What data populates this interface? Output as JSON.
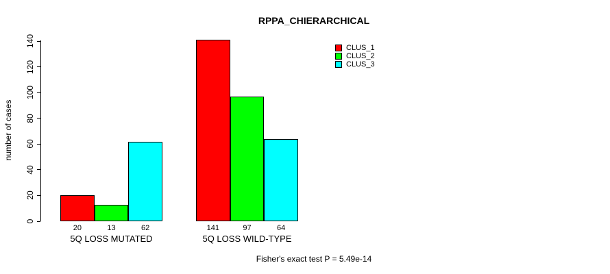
{
  "chart_data": {
    "type": "bar",
    "title": "RPPA_CHIERARCHICAL",
    "ylabel": "number of cases",
    "ylim": [
      0,
      140
    ],
    "ytick_step": 20,
    "ytick_labels": [
      "0",
      "20",
      "40",
      "60",
      "80",
      "100",
      "120",
      "140"
    ],
    "categories": [
      "5Q LOSS MUTATED",
      "5Q LOSS WILD-TYPE"
    ],
    "series": [
      {
        "name": "CLUS_1",
        "color": "#ff0000",
        "values": [
          20,
          141
        ]
      },
      {
        "name": "CLUS_2",
        "color": "#00ff00",
        "values": [
          13,
          97
        ]
      },
      {
        "name": "CLUS_3",
        "color": "#00ffff",
        "values": [
          62,
          64
        ]
      }
    ],
    "bar_value_labels": [
      [
        "20",
        "13",
        "62"
      ],
      [
        "141",
        "97",
        "64"
      ]
    ],
    "legend_position": "top-right",
    "legend_entries": [
      "CLUS_1",
      "CLUS_2",
      "CLUS_3"
    ],
    "grid": false,
    "annotation": "Fisher's exact test P = 5.49e-14"
  }
}
